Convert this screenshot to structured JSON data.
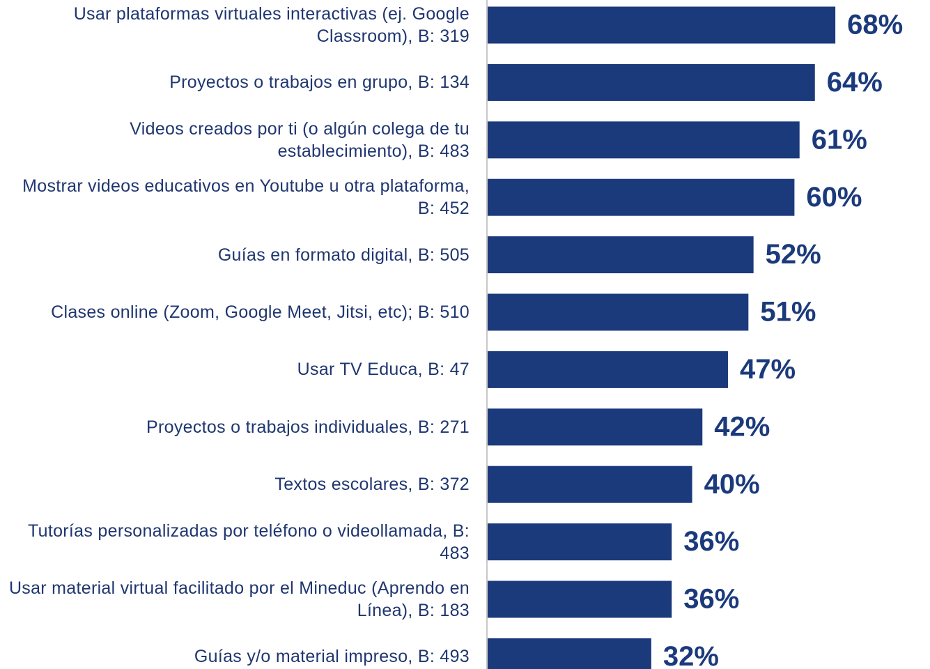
{
  "chart_data": {
    "type": "bar",
    "orientation": "horizontal",
    "categories": [
      "Usar plataformas virtuales interactivas (ej. Google Classroom), B: 319",
      "Proyectos o trabajos en grupo, B: 134",
      "Videos creados por ti (o algún colega de tu establecimiento), B: 483",
      "Mostrar videos educativos en Youtube u otra plataforma, B: 452",
      "Guías en formato digital, B: 505",
      "Clases online (Zoom, Google Meet, Jitsi, etc); B: 510",
      "Usar TV Educa, B: 47",
      "Proyectos o trabajos individuales, B: 271",
      "Textos escolares, B: 372",
      "Tutorías personalizadas por teléfono o videollamada, B: 483",
      "Usar material virtual facilitado por el Mineduc (Aprendo en Línea), B: 183",
      "Guías y/o material impreso, B: 493"
    ],
    "values": [
      68,
      64,
      61,
      60,
      52,
      51,
      47,
      42,
      40,
      36,
      36,
      32
    ],
    "value_labels": [
      "68%",
      "64%",
      "61%",
      "60%",
      "52%",
      "51%",
      "47%",
      "42%",
      "40%",
      "36%",
      "36%",
      "32%"
    ],
    "color": "#1b3a7c"
  }
}
